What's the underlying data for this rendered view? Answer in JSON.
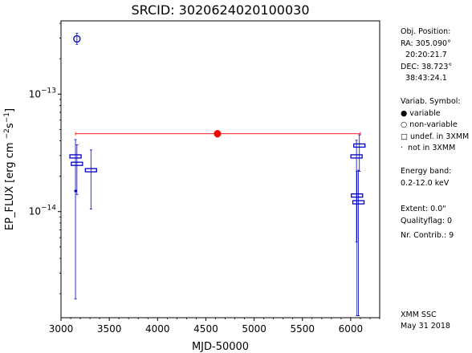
{
  "chart_data": {
    "type": "scatter",
    "title": "SRCID: 3020624020100030",
    "xlabel": "MJD-50000",
    "ylabel": "EP_FLUX [erg cm ^{-2}s^{-1}]",
    "xlim": [
      3000,
      6300
    ],
    "ylim": [
      1.25e-15,
      4.2e-13
    ],
    "yscale": "log",
    "xticks": [
      3000,
      3500,
      4000,
      4500,
      5000,
      5500,
      6000
    ],
    "yticks": [
      {
        "value": 1e-13,
        "label": "10^-13"
      },
      {
        "value": 1e-14,
        "label": "10^-14"
      }
    ],
    "mean_flux": {
      "value": 4.6e-14,
      "x_range": [
        3150,
        6100
      ],
      "color": "#ff0000"
    },
    "series": [
      {
        "marker": "filled-circle",
        "color": "#ff0000",
        "points": [
          {
            "x": 4620,
            "y": 4.6e-14,
            "ylo": 4.3e-14,
            "yhi": 4.9e-14
          }
        ]
      },
      {
        "marker": "open-circle",
        "color": "#0000cc",
        "points": [
          {
            "x": 3165,
            "y": 2.95e-13,
            "ylo": 2.65e-13,
            "yhi": 3.3e-13
          }
        ]
      },
      {
        "marker": "open-square",
        "color": "#0000cc",
        "points": [
          {
            "x": 3150,
            "y": 2.95e-14,
            "ylo": 1.8e-15,
            "yhi": 4.1e-14
          },
          {
            "x": 3165,
            "y": 2.55e-14,
            "ylo": 1.4e-14,
            "yhi": 3.7e-14
          },
          {
            "x": 3310,
            "y": 2.25e-14,
            "ylo": 1.05e-14,
            "yhi": 3.35e-14
          },
          {
            "x": 6060,
            "y": 2.95e-14,
            "ylo": 5.5e-15,
            "yhi": 4.05e-14
          },
          {
            "x": 6090,
            "y": 3.65e-14,
            "ylo": 2.2e-14,
            "yhi": 4.5e-14
          },
          {
            "x": 6065,
            "y": 1.37e-14,
            "ylo": 1.3e-15,
            "yhi": 2.2e-14
          },
          {
            "x": 6080,
            "y": 1.2e-14,
            "ylo": 1.3e-15,
            "yhi": 2.25e-14
          }
        ]
      },
      {
        "marker": "dot",
        "color": "#0000cc",
        "points": [
          {
            "x": 3150,
            "y": 1.5e-14
          }
        ]
      }
    ]
  },
  "side_panel": {
    "lines": [
      "Obj. Position:",
      "RA: 305.090°",
      "  20:20:21.7",
      "DEC: 38.723°",
      "  38:43:24.1",
      "",
      "Variab. Symbol:",
      "● variable",
      "○ non-variable",
      "□ undef. in 3XMM",
      "·  not in 3XMM",
      "",
      "Energy band:",
      "0.2-12.0 keV",
      "",
      "Extent: 0.0\"",
      "Qualityflag: 0",
      "Nr. Contrib.: 9"
    ],
    "footer": [
      "XMM SSC",
      "May 31 2018"
    ]
  }
}
